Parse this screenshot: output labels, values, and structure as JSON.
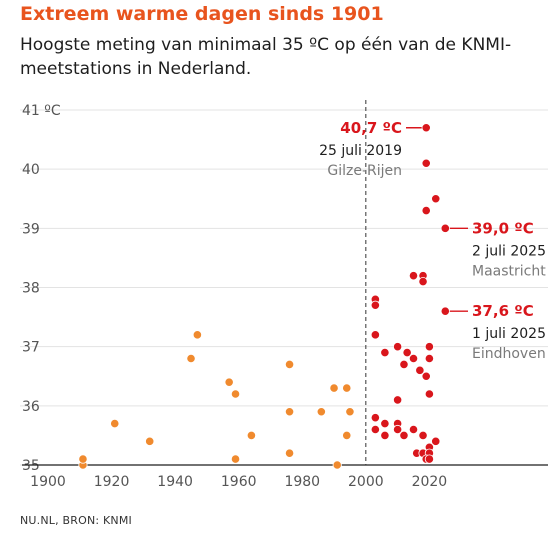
{
  "title": "Extreem warme dagen sinds 1901",
  "subtitle": "Hoogste meting van minimaal 35 ºC op één van de KNMI-meetstations in Nederland.",
  "source": "NU.NL, BRON: KNMI",
  "colors": {
    "title": "#e8541e",
    "before_2000": "#f08a2e",
    "after_2000": "#d9161c"
  },
  "chart_data": {
    "type": "scatter",
    "title": "Extreem warme dagen sinds 1901",
    "xlim": [
      1900,
      2029
    ],
    "ylim": [
      35,
      41
    ],
    "x_ticks": [
      1900,
      1920,
      1940,
      1960,
      1980,
      2000,
      2020
    ],
    "y_ticks": [
      35,
      36,
      37,
      38,
      39,
      40,
      41
    ],
    "y_tick_labels": [
      "35",
      "36",
      "37",
      "38",
      "39",
      "40",
      "41 ºC"
    ],
    "grid": true,
    "reference_line": {
      "x": 2000,
      "style": "dashed"
    },
    "series": [
      {
        "color": "#f08a2e",
        "points": [
          [
            1911,
            35.0
          ],
          [
            1911,
            35.1
          ],
          [
            1921,
            35.7
          ],
          [
            1932,
            35.4
          ],
          [
            1945,
            36.8
          ],
          [
            1947,
            37.2
          ],
          [
            1957,
            36.4
          ],
          [
            1959,
            36.2
          ],
          [
            1959,
            35.1
          ],
          [
            1964,
            35.5
          ],
          [
            1976,
            36.7
          ],
          [
            1976,
            35.9
          ],
          [
            1976,
            35.2
          ],
          [
            1986,
            35.9
          ],
          [
            1990,
            36.3
          ],
          [
            1991,
            35.0
          ],
          [
            1994,
            36.3
          ],
          [
            1994,
            35.5
          ],
          [
            1995,
            35.9
          ]
        ]
      },
      {
        "color": "#d9161c",
        "points": [
          [
            2019,
            40.7
          ],
          [
            2019,
            40.1
          ],
          [
            2022,
            39.5
          ],
          [
            2019,
            39.3
          ],
          [
            2025,
            39.0
          ],
          [
            2015,
            38.2
          ],
          [
            2018,
            38.2
          ],
          [
            2018,
            38.1
          ],
          [
            2003,
            37.8
          ],
          [
            2003,
            37.7
          ],
          [
            2025,
            37.6
          ],
          [
            2003,
            37.2
          ],
          [
            2010,
            37.0
          ],
          [
            2020,
            37.0
          ],
          [
            2006,
            36.9
          ],
          [
            2013,
            36.9
          ],
          [
            2015,
            36.8
          ],
          [
            2012,
            36.7
          ],
          [
            2020,
            36.8
          ],
          [
            2017,
            36.6
          ],
          [
            2019,
            36.5
          ],
          [
            2020,
            36.2
          ],
          [
            2010,
            36.1
          ],
          [
            2003,
            35.8
          ],
          [
            2006,
            35.7
          ],
          [
            2010,
            35.7
          ],
          [
            2010,
            35.6
          ],
          [
            2015,
            35.6
          ],
          [
            2003,
            35.6
          ],
          [
            2006,
            35.5
          ],
          [
            2012,
            35.5
          ],
          [
            2018,
            35.5
          ],
          [
            2020,
            35.3
          ],
          [
            2022,
            35.4
          ],
          [
            2016,
            35.2
          ],
          [
            2018,
            35.2
          ],
          [
            2020,
            35.2
          ],
          [
            2019,
            35.1
          ],
          [
            2020,
            35.1
          ]
        ]
      }
    ],
    "annotations": [
      {
        "x": 2019,
        "y": 40.7,
        "value": "40,7 ºC",
        "date": "25 juli 2019",
        "place": "Gilze-Rijen",
        "side": "left"
      },
      {
        "x": 2025,
        "y": 39.0,
        "value": "39,0 ºC",
        "date": "2 juli 2025",
        "place": "Maastricht",
        "side": "right"
      },
      {
        "x": 2025,
        "y": 37.6,
        "value": "37,6 ºC",
        "date": "1 juli 2025",
        "place": "Eindhoven",
        "side": "right"
      }
    ]
  }
}
